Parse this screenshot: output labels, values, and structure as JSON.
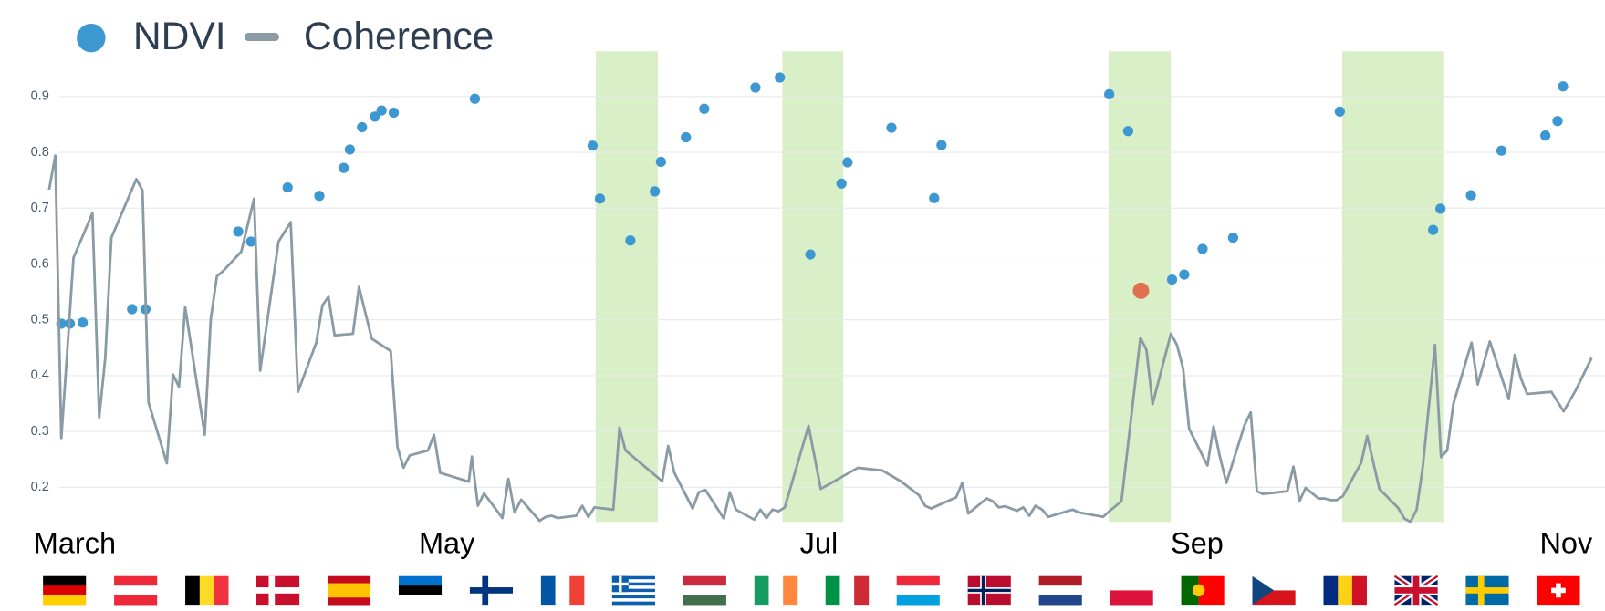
{
  "chart_data": {
    "type": "scatter",
    "series": [
      {
        "name": "NDVI",
        "mode": "markers",
        "color": "#3d97d1",
        "x": [
          -2.2,
          -0.8,
          1.3,
          9.4,
          11.6,
          26.8,
          28.9,
          34.9,
          40.1,
          44.1,
          45.1,
          47.1,
          49.2,
          50.3,
          52.3,
          65.6,
          84.9,
          86.1,
          91.1,
          95.1,
          96.1,
          100.2,
          103.2,
          111.6,
          115.6,
          120.6,
          125.7,
          126.7,
          133.9,
          140.9,
          142.1,
          169.6,
          172.7,
          179.9,
          181.9,
          184.9,
          189.9,
          207.4,
          222.7,
          223.9,
          228.9,
          233.9,
          241.1,
          243.1,
          244.0
        ],
        "values": [
          0.493,
          0.493,
          0.495,
          0.519,
          0.519,
          0.658,
          0.64,
          0.737,
          0.722,
          0.772,
          0.805,
          0.845,
          0.864,
          0.875,
          0.871,
          0.896,
          0.812,
          0.717,
          0.642,
          0.73,
          0.783,
          0.827,
          0.878,
          0.916,
          0.934,
          0.617,
          0.744,
          0.782,
          0.844,
          0.718,
          0.813,
          0.904,
          0.838,
          0.572,
          0.581,
          0.627,
          0.647,
          0.873,
          0.661,
          0.699,
          0.723,
          0.803,
          0.83,
          0.856,
          0.918
        ]
      },
      {
        "name": "Coherence",
        "mode": "lines",
        "color": "#8a9ba5",
        "x": [
          -4.2,
          -3.2,
          -2.2,
          -1.2,
          -0.2,
          2.9,
          4.0,
          5.0,
          6.0,
          10.1,
          11.1,
          12.1,
          15.1,
          16.1,
          17.1,
          18.1,
          21.3,
          22.3,
          23.3,
          24.3,
          27.3,
          29.4,
          30.4,
          33.4,
          35.4,
          36.6,
          39.6,
          40.6,
          41.6,
          42.6,
          45.6,
          46.6,
          48.7,
          51.8,
          52.9,
          53.9,
          54.9,
          57.9,
          58.9,
          59.9,
          64.6,
          65.1,
          66.1,
          67.1,
          70.1,
          71.1,
          72.1,
          73.2,
          76.2,
          77.2,
          78.2,
          79.2,
          82.2,
          83.2,
          84.2,
          85.2,
          88.3,
          89.3,
          90.3,
          96.3,
          97.3,
          98.3,
          101.3,
          102.3,
          103.4,
          106.4,
          107.4,
          108.4,
          111.4,
          112.4,
          113.4,
          114.4,
          115.4,
          116.4,
          120.3,
          122.3,
          128.4,
          132.4,
          135.4,
          138.4,
          139.4,
          140.4,
          144.5,
          145.5,
          146.5,
          149.5,
          150.5,
          151.5,
          152.5,
          154.5,
          155.5,
          156.5,
          157.5,
          158.6,
          159.6,
          163.6,
          164.6,
          168.6,
          169.6,
          171.6,
          174.7,
          175.7,
          176.7,
          179.7,
          180.7,
          181.7,
          182.7,
          185.7,
          186.7,
          187.7,
          188.8,
          191.8,
          192.8,
          193.8,
          194.8,
          198.8,
          199.8,
          200.8,
          201.8,
          203.9,
          204.9,
          205.9,
          206.9,
          207.9,
          210.9,
          211.9,
          213.9,
          216.9,
          218.0,
          219.0,
          220.0,
          221.0,
          223.0,
          224.0,
          225.0,
          226.0,
          229.0,
          230.0,
          232.0,
          235.1,
          236.1,
          237.1,
          238.1,
          242.1,
          244.1,
          246.1,
          248.7
        ],
        "values": [
          0.733,
          0.794,
          0.288,
          0.449,
          0.611,
          0.691,
          0.325,
          0.431,
          0.647,
          0.752,
          0.732,
          0.352,
          0.243,
          0.402,
          0.38,
          0.523,
          0.294,
          0.501,
          0.578,
          0.587,
          0.622,
          0.717,
          0.409,
          0.64,
          0.675,
          0.371,
          0.459,
          0.526,
          0.541,
          0.472,
          0.475,
          0.559,
          0.466,
          0.444,
          0.272,
          0.235,
          0.257,
          0.266,
          0.294,
          0.226,
          0.21,
          0.255,
          0.167,
          0.189,
          0.145,
          0.215,
          0.155,
          0.178,
          0.14,
          0.147,
          0.149,
          0.145,
          0.149,
          0.167,
          0.147,
          0.164,
          0.16,
          0.307,
          0.266,
          0.211,
          0.274,
          0.226,
          0.162,
          0.191,
          0.195,
          0.144,
          0.191,
          0.16,
          0.142,
          0.16,
          0.145,
          0.16,
          0.157,
          0.164,
          0.31,
          0.197,
          0.235,
          0.23,
          0.211,
          0.186,
          0.167,
          0.162,
          0.182,
          0.208,
          0.153,
          0.18,
          0.175,
          0.164,
          0.166,
          0.158,
          0.164,
          0.149,
          0.167,
          0.16,
          0.147,
          0.16,
          0.155,
          0.147,
          0.157,
          0.175,
          0.468,
          0.446,
          0.349,
          0.475,
          0.455,
          0.413,
          0.305,
          0.239,
          0.309,
          0.257,
          0.208,
          0.312,
          0.334,
          0.193,
          0.188,
          0.193,
          0.237,
          0.175,
          0.199,
          0.18,
          0.18,
          0.177,
          0.177,
          0.184,
          0.244,
          0.292,
          0.197,
          0.164,
          0.144,
          0.138,
          0.16,
          0.237,
          0.455,
          0.254,
          0.266,
          0.349,
          0.459,
          0.384,
          0.461,
          0.358,
          0.437,
          0.395,
          0.367,
          0.371,
          0.336,
          0.374,
          0.432
        ]
      }
    ],
    "highlight": {
      "x": 174.8,
      "value": 0.552,
      "color": "#e0714f"
    },
    "shaded_ranges": [
      [
        85.4,
        95.6
      ],
      [
        116.0,
        126.0
      ],
      [
        169.5,
        179.7
      ],
      [
        207.8,
        224.5
      ]
    ],
    "shade_color": "#d9efc7",
    "xlim": [
      -4.2,
      249.2
    ],
    "xticks": [
      {
        "value": 0,
        "label": "March"
      },
      {
        "value": 61,
        "label": "May"
      },
      {
        "value": 122,
        "label": "Jul"
      },
      {
        "value": 184,
        "label": "Sep"
      },
      {
        "value": 245,
        "label": "Nov"
      }
    ],
    "ylim": [
      0.138,
      0.981
    ],
    "yticks": [
      0.2,
      0.3,
      0.4,
      0.5,
      0.6,
      0.7,
      0.8,
      0.9
    ],
    "grid": true,
    "legend": "top-left"
  }
}
